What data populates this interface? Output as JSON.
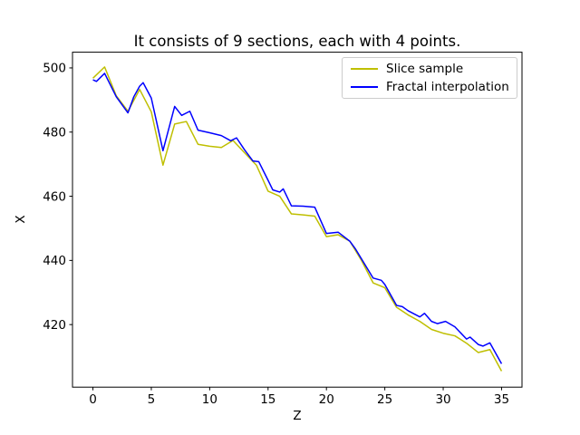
{
  "chart_data": {
    "type": "line",
    "title": "It consists of 9 sections, each with 4 points.",
    "xlabel": "Z",
    "ylabel": "X",
    "xlim": [
      -1.75,
      36.75
    ],
    "ylim": [
      400.5,
      504.9
    ],
    "xticks": [
      0,
      5,
      10,
      15,
      20,
      25,
      30,
      35
    ],
    "yticks": [
      420,
      440,
      460,
      480,
      500
    ],
    "grid": false,
    "legend_position": "upper right",
    "series": [
      {
        "name": "Slice sample",
        "color": "#bfbf00",
        "line_width": 1.5,
        "x": [
          0,
          1,
          2,
          3,
          4,
          5,
          6,
          7,
          8,
          9,
          10,
          11,
          12,
          13,
          14,
          15,
          16,
          17,
          18,
          19,
          20,
          21,
          22,
          23,
          24,
          25,
          26,
          27,
          28,
          29,
          30,
          31,
          32,
          33,
          34,
          35
        ],
        "y": [
          496.8,
          500.3,
          491.3,
          486.5,
          493.3,
          486.3,
          469.7,
          482.5,
          483.3,
          476.2,
          475.6,
          475.2,
          477.4,
          473.5,
          469.7,
          461.6,
          460.0,
          454.5,
          454.2,
          453.8,
          447.4,
          448.0,
          446.0,
          440.0,
          433.0,
          431.5,
          425.4,
          423.0,
          421.0,
          418.5,
          417.3,
          416.5,
          414.2,
          411.3,
          412.2,
          405.5
        ]
      },
      {
        "name": "Fractal interpolation",
        "color": "#0000ff",
        "line_width": 1.5,
        "x": [
          0,
          0.3,
          1,
          2,
          2.5,
          3,
          3.5,
          4,
          4.3,
          5,
          6,
          7,
          7.6,
          8.3,
          9,
          10,
          11,
          11.8,
          12.3,
          13,
          13.7,
          14.2,
          15,
          15.4,
          16,
          16.3,
          17,
          18,
          19,
          20,
          21,
          22,
          22.5,
          23,
          24,
          24.7,
          25,
          26,
          26.5,
          27,
          28,
          28.4,
          29,
          29.5,
          30.2,
          31,
          32,
          32.3,
          33,
          33.4,
          34,
          35
        ],
        "y": [
          496.3,
          495.8,
          498.3,
          491.0,
          488.5,
          486.0,
          491.0,
          494.3,
          495.4,
          490.6,
          474.2,
          488.0,
          485.2,
          486.5,
          480.6,
          479.8,
          478.9,
          477.3,
          478.2,
          474.4,
          471.0,
          470.8,
          465.0,
          462.0,
          461.3,
          462.3,
          457.0,
          456.9,
          456.6,
          448.4,
          448.8,
          446.0,
          443.5,
          440.5,
          434.5,
          433.8,
          432.5,
          426.0,
          425.6,
          424.3,
          422.4,
          423.5,
          421.0,
          420.3,
          421.0,
          419.3,
          415.5,
          416.1,
          413.8,
          413.3,
          414.3,
          407.8
        ]
      }
    ]
  }
}
